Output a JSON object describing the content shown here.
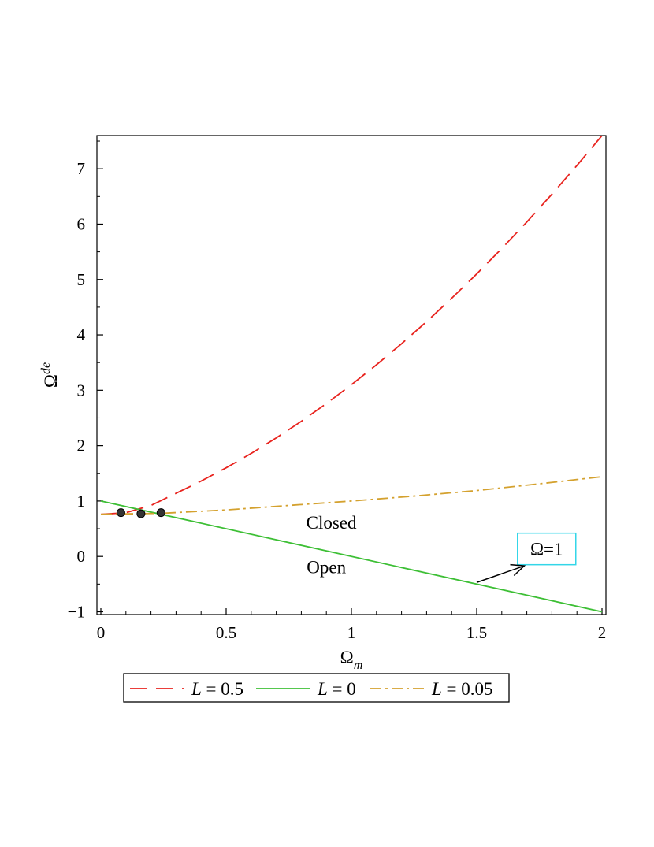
{
  "chart_data": {
    "type": "line",
    "title": "",
    "xlabel": "Ω",
    "xlabel_sub": "m",
    "ylabel": "Ω",
    "ylabel_sup": "de",
    "xlim": [
      0,
      2
    ],
    "ylim": [
      -1.05,
      7.6
    ],
    "x_ticks": [
      {
        "value": 0,
        "label": "0"
      },
      {
        "value": 0.5,
        "label": "0.5"
      },
      {
        "value": 1,
        "label": "1"
      },
      {
        "value": 1.5,
        "label": "1.5"
      },
      {
        "value": 2,
        "label": "2"
      }
    ],
    "y_ticks": [
      {
        "value": -1,
        "label": "−1"
      },
      {
        "value": 0,
        "label": "0"
      },
      {
        "value": 1,
        "label": "1"
      },
      {
        "value": 2,
        "label": "2"
      },
      {
        "value": 3,
        "label": "3"
      },
      {
        "value": 4,
        "label": "4"
      },
      {
        "value": 5,
        "label": "5"
      },
      {
        "value": 6,
        "label": "6"
      },
      {
        "value": 7,
        "label": "7"
      }
    ],
    "grid": false,
    "legend_position": "bottom",
    "series": [
      {
        "legend_var": "L",
        "legend_rest": " = 0.5",
        "color": "#e8231e",
        "dash": "dashed",
        "x": [
          0,
          0.1,
          0.2,
          0.3,
          0.4,
          0.5,
          0.6,
          0.7,
          0.8,
          0.9,
          1.0,
          1.1,
          1.2,
          1.3,
          1.4,
          1.5,
          1.6,
          1.7,
          1.8,
          1.9,
          2.0
        ],
        "y": [
          0.76,
          0.79,
          0.92,
          1.14,
          1.36,
          1.6,
          1.86,
          2.14,
          2.44,
          2.76,
          3.1,
          3.46,
          3.84,
          4.24,
          4.66,
          5.1,
          5.56,
          6.04,
          6.54,
          7.06,
          7.6
        ]
      },
      {
        "legend_var": "L",
        "legend_rest": " = 0",
        "color": "#3dbf35",
        "dash": "solid",
        "x": [
          0,
          2
        ],
        "y": [
          1,
          -1
        ]
      },
      {
        "legend_var": "L",
        "legend_rest": " = 0.05",
        "color": "#d4a12e",
        "dash": "dashdot",
        "x": [
          0,
          0.25,
          0.5,
          0.75,
          1.0,
          1.25,
          1.5,
          1.75,
          2.0
        ],
        "y": [
          0.76,
          0.78,
          0.84,
          0.92,
          1.0,
          1.09,
          1.19,
          1.31,
          1.44
        ]
      }
    ],
    "points": [
      {
        "x": 0.08,
        "y": 0.79
      },
      {
        "x": 0.16,
        "y": 0.77
      },
      {
        "x": 0.24,
        "y": 0.79
      }
    ],
    "annotations": {
      "closed": {
        "text": "Closed",
        "x": 0.92,
        "y": 0.5
      },
      "open": {
        "text": "Open",
        "x": 0.9,
        "y": -0.3
      },
      "omega": {
        "text": "Ω=1",
        "x": 1.82,
        "y": 0.05,
        "border_color": "#33d6e8"
      },
      "arrow": {
        "x1": 1.5,
        "y1": -0.47,
        "x2": 1.69,
        "y2": -0.17
      }
    }
  }
}
